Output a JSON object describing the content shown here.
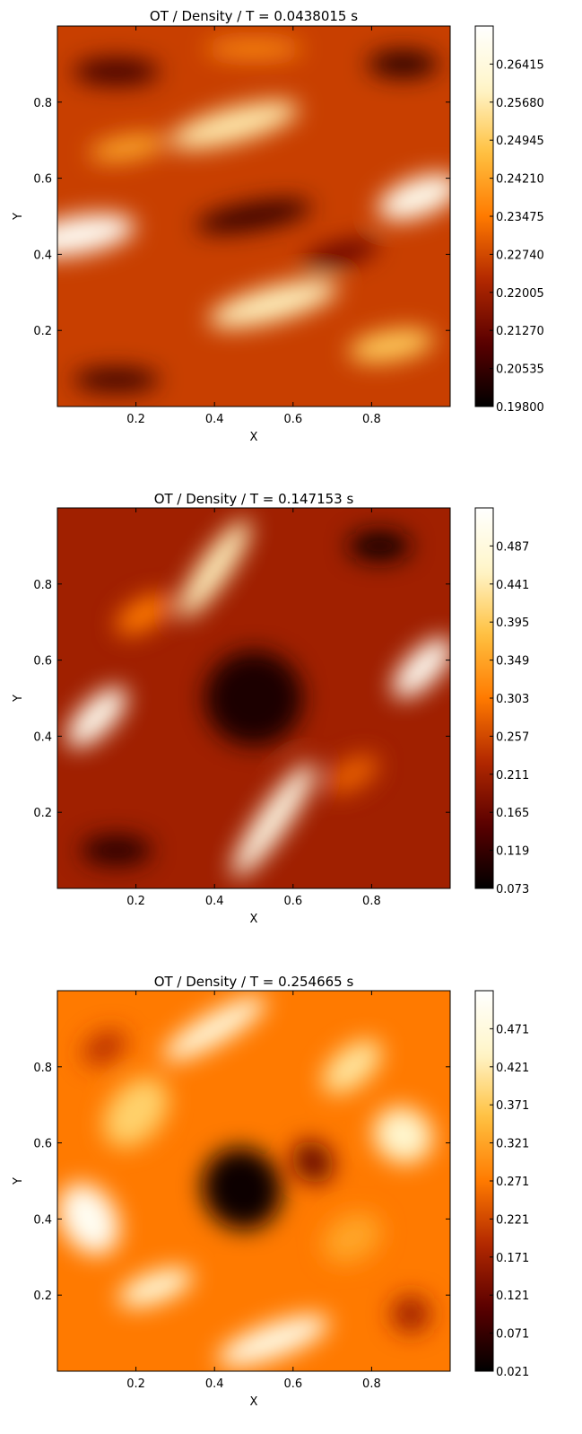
{
  "colormap": [
    "#000000",
    "#5a0000",
    "#b22800",
    "#ff7a00",
    "#ffc040",
    "#fff5c8",
    "#ffffff"
  ],
  "chart_data": [
    {
      "type": "heatmap",
      "title": "OT / Density / T = 0.0438015 s",
      "xlabel": "X",
      "ylabel": "Y",
      "xlim": [
        0,
        1
      ],
      "ylim": [
        0,
        1
      ],
      "xticks": [
        "0.2",
        "0.4",
        "0.6",
        "0.8"
      ],
      "yticks": [
        "0.2",
        "0.4",
        "0.6",
        "0.8"
      ],
      "colorbar": {
        "min": 0.198,
        "max": 0.2715,
        "ticks": [
          "0.19800",
          "0.20535",
          "0.21270",
          "0.22005",
          "0.22740",
          "0.23475",
          "0.24210",
          "0.24945",
          "0.25680",
          "0.26415"
        ]
      }
    },
    {
      "type": "heatmap",
      "title": "OT / Density / T = 0.147153 s",
      "xlabel": "X",
      "ylabel": "Y",
      "xlim": [
        0,
        1
      ],
      "ylim": [
        0,
        1
      ],
      "xticks": [
        "0.2",
        "0.4",
        "0.6",
        "0.8"
      ],
      "yticks": [
        "0.2",
        "0.4",
        "0.6",
        "0.8"
      ],
      "colorbar": {
        "min": 0.073,
        "max": 0.533,
        "ticks": [
          "0.073",
          "0.119",
          "0.165",
          "0.211",
          "0.257",
          "0.303",
          "0.349",
          "0.395",
          "0.441",
          "0.487"
        ]
      }
    },
    {
      "type": "heatmap",
      "title": "OT / Density / T = 0.254665 s",
      "xlabel": "X",
      "ylabel": "Y",
      "xlim": [
        0,
        1
      ],
      "ylim": [
        0,
        1
      ],
      "xticks": [
        "0.2",
        "0.4",
        "0.6",
        "0.8"
      ],
      "yticks": [
        "0.2",
        "0.4",
        "0.6",
        "0.8"
      ],
      "colorbar": {
        "min": 0.021,
        "max": 0.521,
        "ticks": [
          "0.021",
          "0.071",
          "0.121",
          "0.171",
          "0.221",
          "0.271",
          "0.321",
          "0.371",
          "0.421",
          "0.471"
        ]
      }
    }
  ]
}
